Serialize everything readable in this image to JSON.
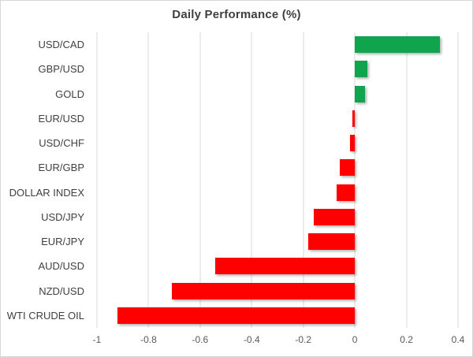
{
  "chart_data": {
    "type": "bar",
    "orientation": "horizontal",
    "title": "Daily Performance (%)",
    "categories": [
      "USD/CAD",
      "GBP/USD",
      "GOLD",
      "EUR/USD",
      "USD/CHF",
      "EUR/GBP",
      "DOLLAR INDEX",
      "USD/JPY",
      "EUR/JPY",
      "AUD/USD",
      "NZD/USD",
      "WTI CRUDE OIL"
    ],
    "values": [
      0.33,
      0.05,
      0.04,
      -0.01,
      -0.02,
      -0.06,
      -0.07,
      -0.16,
      -0.18,
      -0.54,
      -0.71,
      -0.92
    ],
    "xlim": [
      -1,
      0.4
    ],
    "x_ticks": [
      -1,
      -0.8,
      -0.6,
      -0.4,
      -0.2,
      0,
      0.2,
      0.4
    ],
    "x_tick_labels": [
      "-1",
      "-0.8",
      "-0.6",
      "-0.4",
      "-0.2",
      "0",
      "0.2",
      "0.4"
    ],
    "grid": "vertical",
    "legend": "none",
    "positive_color": "#10a44f",
    "negative_color": "#fe0000",
    "gridline_color": "#d9d9d9",
    "title_color": "#3f3f3f",
    "tick_label_color": "#595959",
    "category_label_color": "#404040"
  }
}
